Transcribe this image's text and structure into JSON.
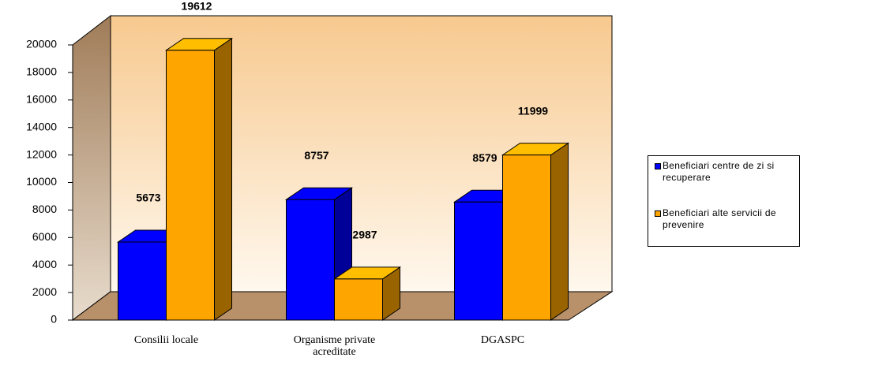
{
  "chart_data": {
    "type": "bar3d",
    "categories": [
      "Consilii locale",
      "Organisme private acreditate",
      "DGASPC"
    ],
    "series": [
      {
        "name": "Beneficiari centre de zi si recuperare",
        "color": "#0000ff",
        "values": [
          5673,
          8757,
          8579
        ]
      },
      {
        "name": "Beneficiari alte servicii de prevenire",
        "color": "#ffa500",
        "values": [
          19612,
          2987,
          11999
        ]
      }
    ],
    "ylim": [
      0,
      20000
    ],
    "yticks": [
      0,
      2000,
      4000,
      6000,
      8000,
      10000,
      12000,
      14000,
      16000,
      18000,
      20000
    ],
    "legend": "right"
  }
}
